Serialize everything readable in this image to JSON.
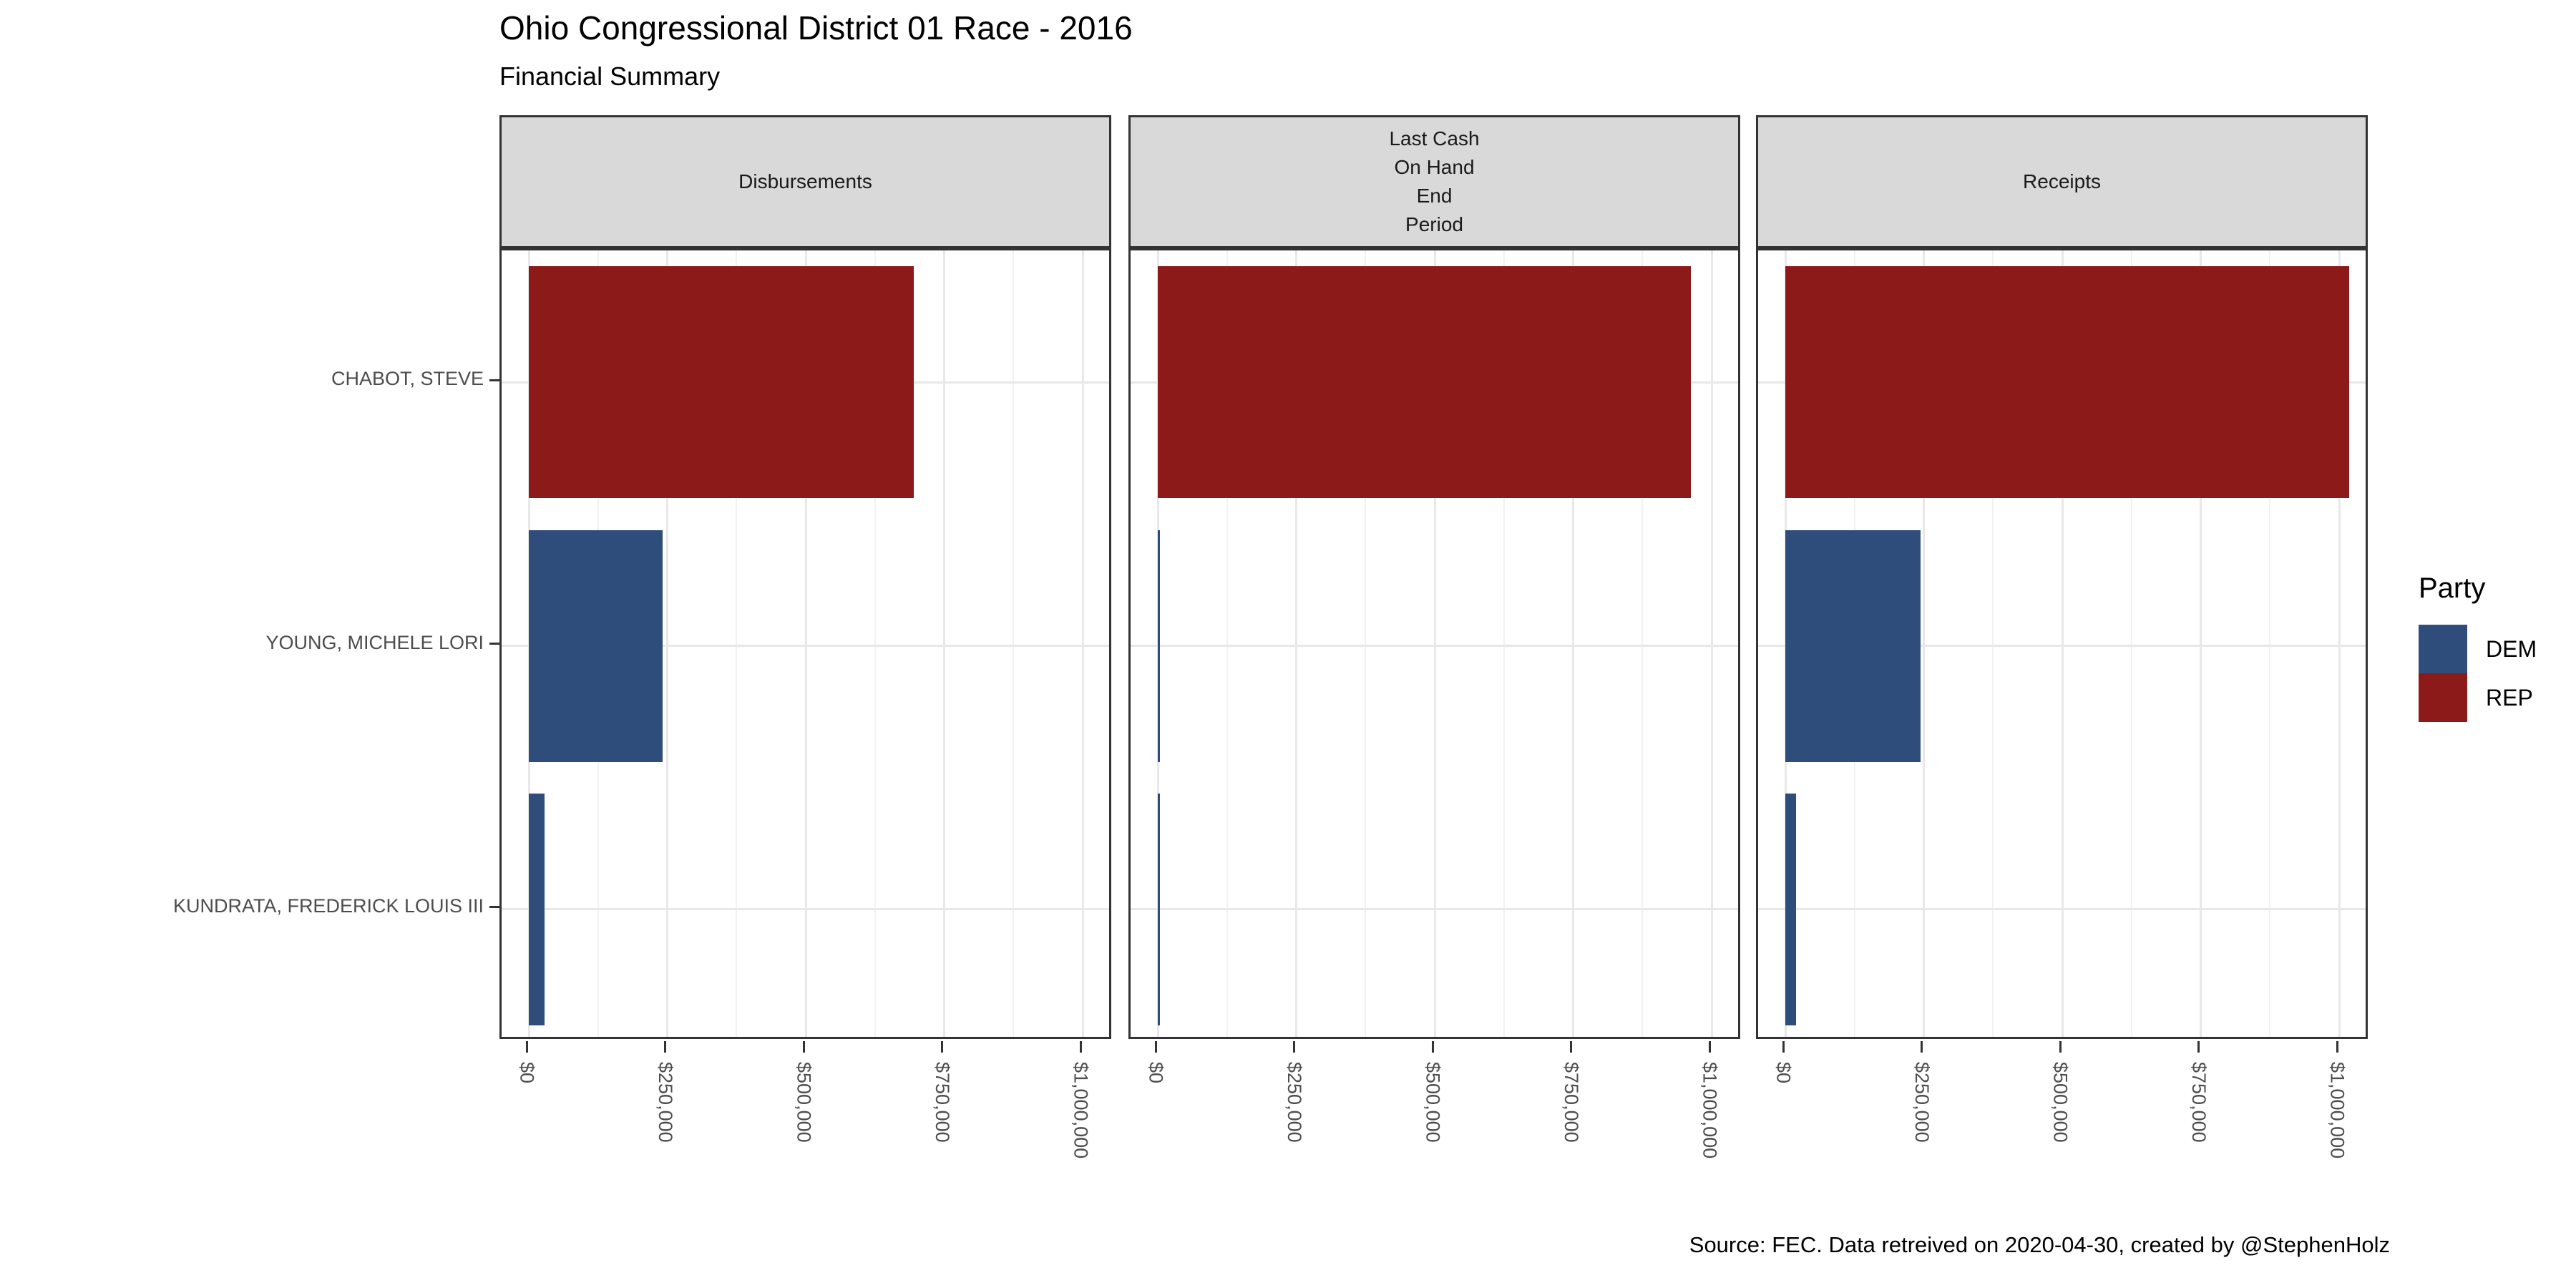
{
  "title": "Ohio Congressional District 01 Race - 2016",
  "subtitle": "Financial Summary",
  "caption": "Source: FEC. Data retreived on 2020-04-30, created by @StephenHolz",
  "legend": {
    "title": "Party",
    "entries": [
      {
        "label": "DEM",
        "color": "#2E4D7B"
      },
      {
        "label": "REP",
        "color": "#8C1A18"
      }
    ]
  },
  "chart_data": {
    "type": "bar",
    "orientation": "horizontal",
    "title": "Ohio Congressional District 01 Race - 2016",
    "subtitle": "Financial Summary",
    "facets": [
      {
        "name": "Disbursements",
        "label_lines": [
          "Disbursements"
        ]
      },
      {
        "name": "Last Cash On Hand End Period",
        "label_lines": [
          "Last Cash",
          "On Hand",
          "End",
          "Period"
        ]
      },
      {
        "name": "Receipts",
        "label_lines": [
          "Receipts"
        ]
      }
    ],
    "categories": [
      "CHABOT, STEVE",
      "YOUNG, MICHELE LORI",
      "KUNDRATA, FREDERICK LOUIS III"
    ],
    "category_party": [
      "REP",
      "DEM",
      "DEM"
    ],
    "series": [
      {
        "facet": "Disbursements",
        "values": [
          695000,
          242000,
          28000
        ]
      },
      {
        "facet": "Last Cash On Hand End Period",
        "values": [
          963000,
          2000,
          2500
        ]
      },
      {
        "facet": "Receipts",
        "values": [
          1018000,
          244000,
          19000
        ]
      }
    ],
    "x_tick_labels": [
      "$0",
      "$250,000",
      "$500,000",
      "$750,000",
      "$1,000,000"
    ],
    "x_tick_values": [
      0,
      250000,
      500000,
      750000,
      1000000
    ],
    "xlim": [
      0,
      1000000
    ],
    "legend_position": "right",
    "grid": {
      "major_color": "#E8E8E8",
      "minor_color": "#F2F2F2",
      "minor_at_half_intervals": true
    },
    "style": {
      "strip_fill": "#D9D9D9",
      "panel_border": "#333333",
      "axis_text_color": "#4D4D4D",
      "party_colors": {
        "DEM": "#2E4D7B",
        "REP": "#8C1A18"
      }
    }
  }
}
